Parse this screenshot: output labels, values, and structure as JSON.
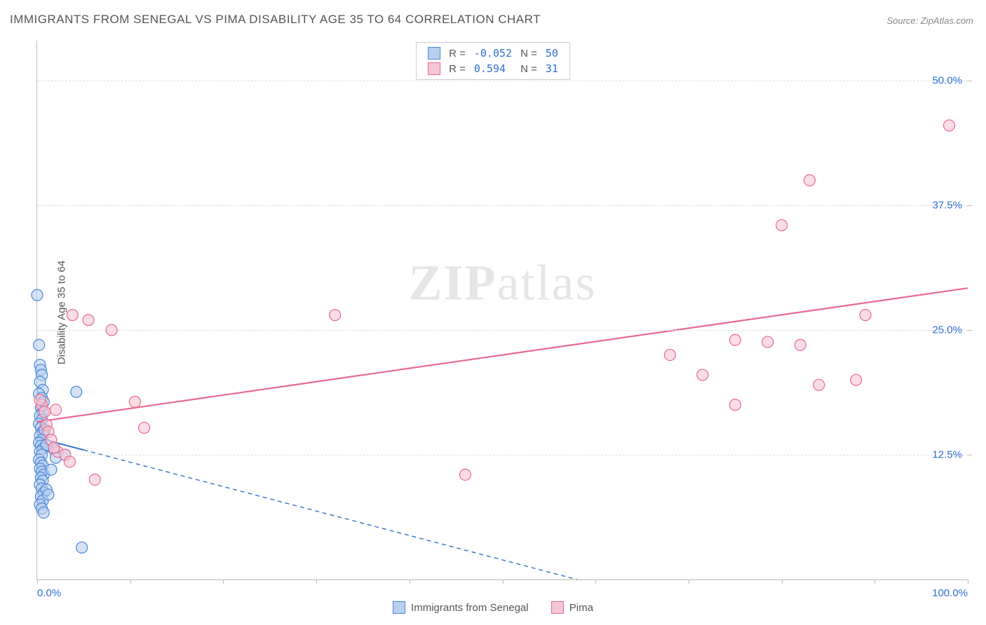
{
  "title": "IMMIGRANTS FROM SENEGAL VS PIMA DISABILITY AGE 35 TO 64 CORRELATION CHART",
  "source_label": "Source: ZipAtlas.com",
  "watermark_a": "ZIP",
  "watermark_b": "atlas",
  "ylabel": "Disability Age 35 to 64",
  "chart": {
    "type": "scatter",
    "background_color": "#ffffff",
    "grid_color": "#dddddd",
    "axis_color": "#bbbbbb",
    "tick_label_color": "#2f6fd0",
    "tick_fontsize": 15,
    "title_fontsize": 17,
    "title_color": "#555555",
    "xlim": [
      0,
      100
    ],
    "ylim": [
      0,
      54
    ],
    "yticks": [
      12.5,
      25.0,
      37.5,
      50.0
    ],
    "ytick_labels": [
      "12.5%",
      "25.0%",
      "37.5%",
      "50.0%"
    ],
    "xticks": [
      0,
      10,
      20,
      30,
      40,
      50,
      60,
      70,
      80,
      90,
      100
    ],
    "xtick_labels_shown": {
      "0": "0.0%",
      "100": "100.0%"
    },
    "marker_radius": 8,
    "marker_stroke_width": 1.2,
    "series": [
      {
        "id": "senegal",
        "label": "Immigrants from Senegal",
        "fill": "#b8d0ef",
        "stroke": "#4b86d8",
        "fill_opacity": 0.6,
        "R": "-0.052",
        "N": "50",
        "regression": {
          "x1": 0,
          "y1": 14.2,
          "x2": 58,
          "y2": 0,
          "stroke": "#2f6fd0",
          "dash": "6 5",
          "width": 1.4,
          "solid_until_x": 5
        },
        "points": [
          [
            0.0,
            28.5
          ],
          [
            0.2,
            23.5
          ],
          [
            0.3,
            21.5
          ],
          [
            0.4,
            21.0
          ],
          [
            0.5,
            20.5
          ],
          [
            0.3,
            19.8
          ],
          [
            0.6,
            19.0
          ],
          [
            0.2,
            18.6
          ],
          [
            0.5,
            18.2
          ],
          [
            0.7,
            17.8
          ],
          [
            4.2,
            18.8
          ],
          [
            0.4,
            17.2
          ],
          [
            0.6,
            16.8
          ],
          [
            0.3,
            16.4
          ],
          [
            0.5,
            16.0
          ],
          [
            0.2,
            15.6
          ],
          [
            0.4,
            15.2
          ],
          [
            0.6,
            14.8
          ],
          [
            0.3,
            14.4
          ],
          [
            0.5,
            14.0
          ],
          [
            0.2,
            13.7
          ],
          [
            0.4,
            13.4
          ],
          [
            0.6,
            13.1
          ],
          [
            0.3,
            12.8
          ],
          [
            0.5,
            12.5
          ],
          [
            1.8,
            13.0
          ],
          [
            2.0,
            12.2
          ],
          [
            0.2,
            12.0
          ],
          [
            0.4,
            11.7
          ],
          [
            0.6,
            11.4
          ],
          [
            0.3,
            11.1
          ],
          [
            0.5,
            10.8
          ],
          [
            0.7,
            10.5
          ],
          [
            0.4,
            10.2
          ],
          [
            0.6,
            9.9
          ],
          [
            3.0,
            12.5
          ],
          [
            0.3,
            9.5
          ],
          [
            0.5,
            9.1
          ],
          [
            0.7,
            8.7
          ],
          [
            0.4,
            8.3
          ],
          [
            0.6,
            7.9
          ],
          [
            0.3,
            7.5
          ],
          [
            1.0,
            9.0
          ],
          [
            1.2,
            8.5
          ],
          [
            0.5,
            7.1
          ],
          [
            0.7,
            6.7
          ],
          [
            4.8,
            3.2
          ],
          [
            1.5,
            11.0
          ],
          [
            1.0,
            13.5
          ],
          [
            0.8,
            15.0
          ]
        ]
      },
      {
        "id": "pima",
        "label": "Pima",
        "fill": "#f5c6d3",
        "stroke": "#e86a8f",
        "fill_opacity": 0.6,
        "R": "0.594",
        "N": "31",
        "regression": {
          "x1": 0,
          "y1": 15.8,
          "x2": 100,
          "y2": 29.2,
          "stroke": "#e86a8f",
          "dash": "none",
          "width": 2.2
        },
        "points": [
          [
            0.5,
            17.5
          ],
          [
            0.8,
            16.8
          ],
          [
            1.0,
            15.5
          ],
          [
            1.2,
            14.8
          ],
          [
            1.5,
            14.0
          ],
          [
            2.0,
            17.0
          ],
          [
            2.2,
            12.8
          ],
          [
            3.0,
            12.5
          ],
          [
            3.5,
            11.8
          ],
          [
            3.8,
            26.5
          ],
          [
            5.5,
            26.0
          ],
          [
            6.2,
            10.0
          ],
          [
            8.0,
            25.0
          ],
          [
            10.5,
            17.8
          ],
          [
            11.5,
            15.2
          ],
          [
            32.0,
            26.5
          ],
          [
            46.0,
            10.5
          ],
          [
            68.0,
            22.5
          ],
          [
            71.5,
            20.5
          ],
          [
            75.0,
            24.0
          ],
          [
            75.0,
            17.5
          ],
          [
            78.5,
            23.8
          ],
          [
            80.0,
            35.5
          ],
          [
            82.0,
            23.5
          ],
          [
            83.0,
            40.0
          ],
          [
            84.0,
            19.5
          ],
          [
            88.0,
            20.0
          ],
          [
            89.0,
            26.5
          ],
          [
            98.0,
            45.5
          ],
          [
            1.8,
            13.2
          ],
          [
            0.3,
            18.0
          ]
        ]
      }
    ]
  },
  "legend_top_labels": {
    "R": "R =",
    "N": "N ="
  },
  "legend_bottom": [
    {
      "label": "Immigrants from Senegal",
      "fill": "#b8d0ef",
      "stroke": "#4b86d8"
    },
    {
      "label": "Pima",
      "fill": "#f5c6d3",
      "stroke": "#e86a8f"
    }
  ]
}
